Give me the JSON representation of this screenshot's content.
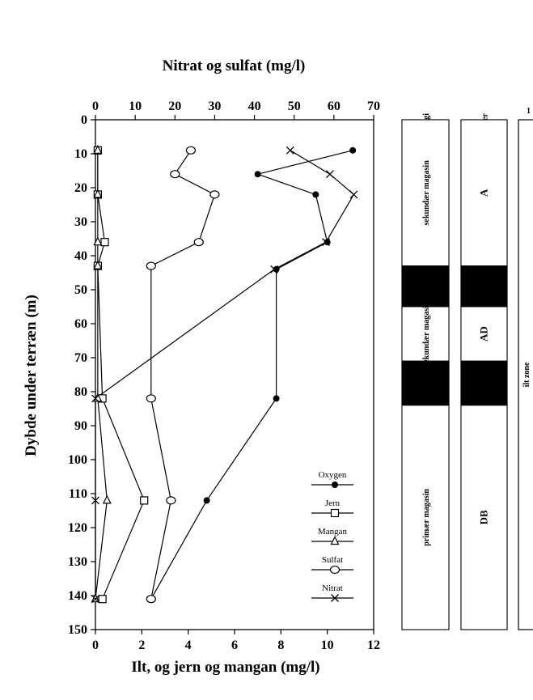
{
  "chart_data": {
    "type": "line",
    "title": "",
    "top_xlabel": "Nitrat og sulfat (mg/l)",
    "bottom_xlabel": "Ilt, og jern og mangan (mg/l)",
    "ylabel": "Dybde under terræn (m)",
    "ylim": [
      0,
      150
    ],
    "yticks": [
      0,
      10,
      20,
      30,
      40,
      50,
      60,
      70,
      80,
      90,
      100,
      110,
      120,
      130,
      140,
      150
    ],
    "top_xlim": [
      0,
      70
    ],
    "top_xticks": [
      0,
      10,
      20,
      30,
      40,
      50,
      60,
      70
    ],
    "bottom_xlim": [
      0,
      12
    ],
    "bottom_xticks": [
      0,
      2,
      4,
      6,
      8,
      10,
      12
    ],
    "grid": false,
    "legend_position": "bottom-right",
    "series": [
      {
        "name": "Oxygen",
        "axis": "bottom",
        "marker": "dot",
        "points": [
          [
            11.1,
            9
          ],
          [
            7.0,
            16
          ],
          [
            9.5,
            22
          ],
          [
            10.0,
            36
          ],
          [
            7.8,
            44
          ],
          [
            7.8,
            82
          ],
          [
            4.8,
            112
          ],
          [
            2.4,
            141
          ]
        ]
      },
      {
        "name": "Jern",
        "axis": "bottom",
        "marker": "square",
        "points": [
          [
            0.1,
            9
          ],
          [
            0.1,
            22
          ],
          [
            0.4,
            36
          ],
          [
            0.1,
            43
          ],
          [
            0.3,
            82
          ],
          [
            2.1,
            112
          ],
          [
            0.3,
            141
          ]
        ]
      },
      {
        "name": "Mangan",
        "axis": "bottom",
        "marker": "triangle",
        "points": [
          [
            0.1,
            9
          ],
          [
            0.1,
            22
          ],
          [
            0.1,
            36
          ],
          [
            0.1,
            43
          ],
          [
            0.1,
            82
          ],
          [
            0.5,
            112
          ],
          [
            0.0,
            141
          ]
        ]
      },
      {
        "name": "Sulfat",
        "axis": "top",
        "marker": "circle",
        "points": [
          [
            24,
            9
          ],
          [
            20,
            16
          ],
          [
            30,
            22
          ],
          [
            26,
            36
          ],
          [
            14,
            43
          ],
          [
            14,
            82
          ],
          [
            19,
            112
          ],
          [
            14,
            141
          ]
        ]
      },
      {
        "name": "Nitrat",
        "axis": "top",
        "marker": "x",
        "points": [
          [
            49,
            9
          ],
          [
            59,
            16
          ],
          [
            65,
            22
          ],
          [
            58,
            36
          ],
          [
            45,
            44
          ],
          [
            0,
            82
          ],
          [
            0,
            112
          ],
          [
            0,
            141
          ]
        ]
      }
    ]
  },
  "columns": {
    "geologi": {
      "title": "Geologi",
      "segments": [
        {
          "from": 0,
          "to": 43,
          "label": "sekundær magasin",
          "fill": "#ffffff"
        },
        {
          "from": 43,
          "to": 55,
          "label": "",
          "fill": "#000000"
        },
        {
          "from": 55,
          "to": 71,
          "label": "sekundær magasin",
          "fill": "#ffffff"
        },
        {
          "from": 71,
          "to": 84,
          "label": "",
          "fill": "#000000"
        },
        {
          "from": 84,
          "to": 150,
          "label": "primær magasin",
          "fill": "#ffffff"
        }
      ]
    },
    "grundvand": {
      "title": "Grundvandsklasser",
      "segments": [
        {
          "from": 0,
          "to": 43,
          "label": "A",
          "fill": "#ffffff"
        },
        {
          "from": 43,
          "to": 55,
          "label": "",
          "fill": "#000000"
        },
        {
          "from": 55,
          "to": 71,
          "label": "AD",
          "fill": "#ffffff"
        },
        {
          "from": 71,
          "to": 84,
          "label": "",
          "fill": "#000000"
        },
        {
          "from": 84,
          "to": 150,
          "label": "DB",
          "fill": "#ffffff"
        }
      ]
    },
    "zone": {
      "title": "1",
      "label": "ilt zone"
    }
  },
  "colors": {
    "ink": "#000000",
    "paper": "#ffffff"
  }
}
